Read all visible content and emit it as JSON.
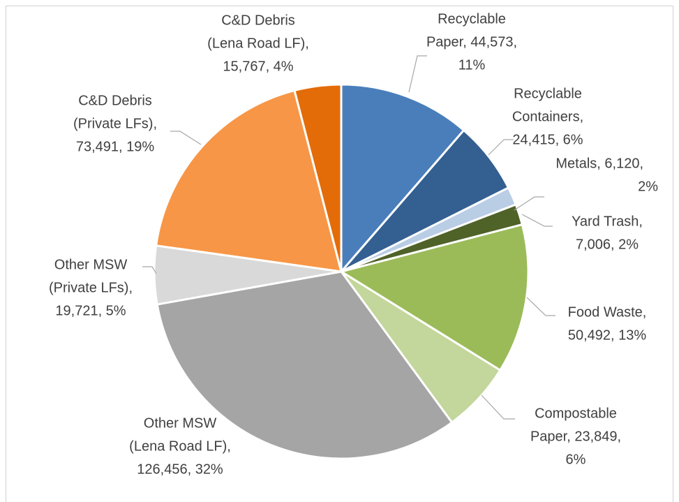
{
  "chart_data": {
    "type": "pie",
    "values": [
      44573,
      24415,
      6120,
      7006,
      50492,
      23849,
      126456,
      19721,
      73491,
      15767
    ],
    "colors": [
      "#4a7ebb",
      "#335f91",
      "#b9cde5",
      "#4f6228",
      "#9bbb59",
      "#c3d69b",
      "#a5a5a5",
      "#d9d9d9",
      "#f79646",
      "#e36c09"
    ],
    "data_labels": [
      [
        "Recyclable",
        "Paper, 44,573,",
        "11%"
      ],
      [
        "Recyclable",
        "Containers,",
        "24,415, 6%"
      ],
      [
        "Metals, 6,120,",
        "2%"
      ],
      [
        "Yard Trash,",
        "7,006, 2%"
      ],
      [
        "Food Waste,",
        "50,492, 13%"
      ],
      [
        "Compostable",
        "Paper, 23,849,",
        "6%"
      ],
      [
        "Other MSW",
        "(Lena Road LF),",
        "126,456, 32%"
      ],
      [
        "Other MSW",
        "(Private LFs),",
        "19,721, 5%"
      ],
      [
        "C&D Debris",
        "(Private LFs),",
        "73,491, 19%"
      ],
      [
        "C&D Debris",
        "(Lena Road LF),",
        "15,767, 4%"
      ]
    ]
  }
}
